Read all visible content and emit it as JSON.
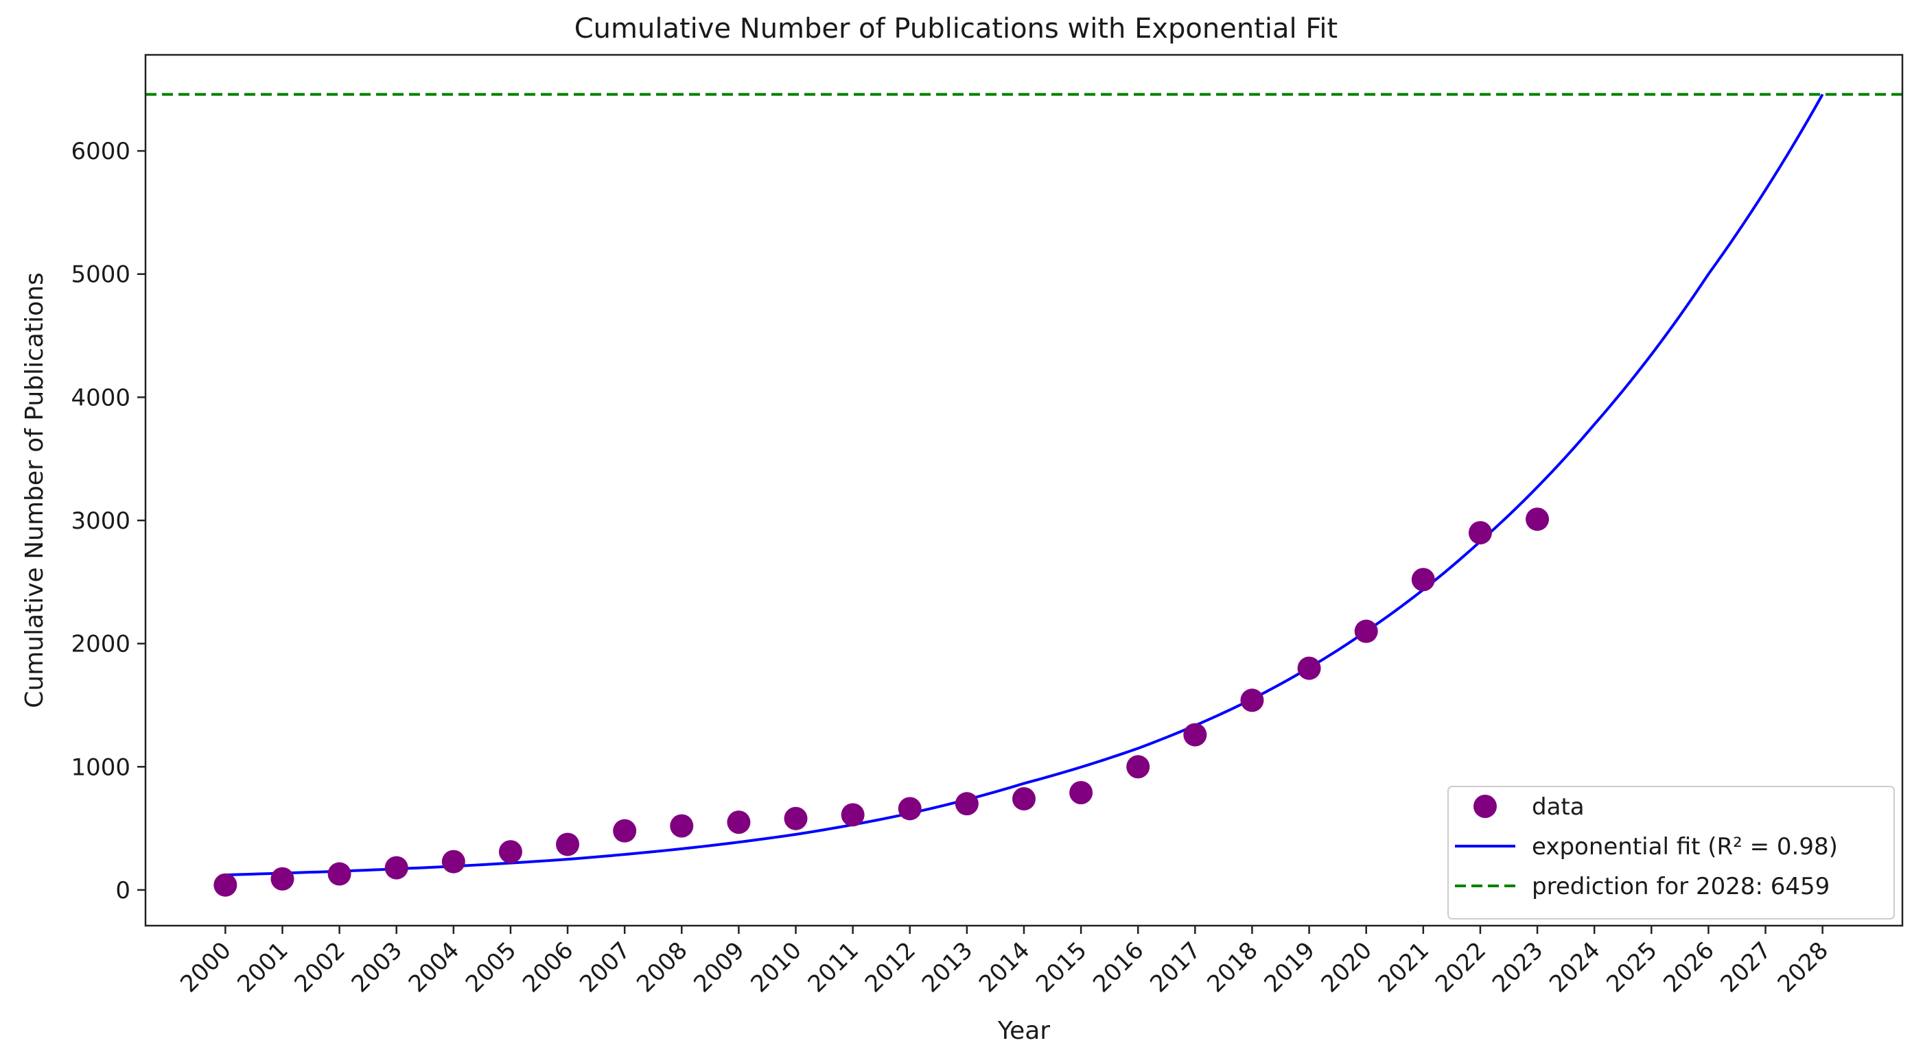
{
  "chart_data": {
    "type": "scatter",
    "title": "Cumulative Number of Publications with Exponential Fit",
    "xlabel": "Year",
    "ylabel": "Cumulative Number of Publications",
    "x_ticks": [
      "2000",
      "2001",
      "2002",
      "2003",
      "2004",
      "2005",
      "2006",
      "2007",
      "2008",
      "2009",
      "2010",
      "2011",
      "2012",
      "2013",
      "2014",
      "2015",
      "2016",
      "2017",
      "2018",
      "2019",
      "2020",
      "2021",
      "2022",
      "2023",
      "2024",
      "2025",
      "2026",
      "2027",
      "2028"
    ],
    "y_ticks": [
      0,
      1000,
      2000,
      3000,
      4000,
      5000,
      6000
    ],
    "xlim": [
      1998.6,
      2029.4
    ],
    "ylim": [
      -290,
      6780
    ],
    "grid": false,
    "legend_position": "lower-right",
    "series": [
      {
        "name": "data",
        "kind": "scatter",
        "color": "#800080",
        "x": [
          2000,
          2001,
          2002,
          2003,
          2004,
          2005,
          2006,
          2007,
          2008,
          2009,
          2010,
          2011,
          2012,
          2013,
          2014,
          2015,
          2016,
          2017,
          2018,
          2019,
          2020,
          2021,
          2022,
          2023
        ],
        "y": [
          40,
          90,
          130,
          180,
          230,
          310,
          370,
          480,
          520,
          550,
          580,
          610,
          660,
          700,
          740,
          790,
          1000,
          1260,
          1540,
          1800,
          2100,
          2520,
          2900,
          3010
        ]
      },
      {
        "name": "exponential fit (R² = 0.98)",
        "kind": "line",
        "color": "#0000ff",
        "function": "exponential",
        "x": [
          2000,
          2002,
          2004,
          2006,
          2008,
          2010,
          2012,
          2014,
          2016,
          2018,
          2020,
          2022,
          2024,
          2026,
          2028
        ],
        "y": [
          122,
          152,
          192,
          249,
          334,
          451,
          622,
          865,
          1150,
          1550,
          2100,
          2830,
          3780,
          5000,
          6459
        ]
      },
      {
        "name": "prediction for 2028: 6459",
        "kind": "hline",
        "color": "#008000",
        "style": "dashed",
        "y": 6459
      }
    ]
  }
}
